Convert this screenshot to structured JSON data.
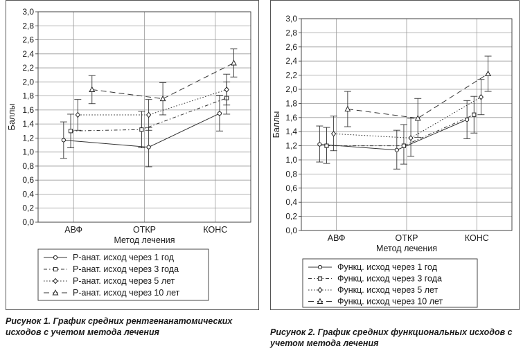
{
  "chart_data": [
    {
      "type": "line",
      "ylabel": "Баллы",
      "xlabel": "Метод лечения",
      "categories": [
        "АВФ",
        "ОТКР",
        "КОНС"
      ],
      "ylim": [
        0,
        3.0
      ],
      "yticks": [
        "0,0",
        "0,2",
        "0,4",
        "0,6",
        "0,8",
        "1,0",
        "1,2",
        "1,4",
        "1,6",
        "1,8",
        "2,0",
        "2,2",
        "2,4",
        "2,6",
        "2,8",
        "3,0"
      ],
      "grid": true,
      "legend_position": "bottom",
      "series": [
        {
          "name": "Р-анат. исход через 1 год",
          "marker": "circle",
          "dash": "solid",
          "x": [
            0.86,
            2.06,
            3.06
          ],
          "values": [
            1.17,
            1.07,
            1.55
          ],
          "err_low": [
            0.91,
            0.79,
            1.3
          ],
          "err_high": [
            1.43,
            1.35,
            1.81
          ]
        },
        {
          "name": "Р-анат. исход через 3 года",
          "marker": "square",
          "dash": "dotdash",
          "x": [
            0.96,
            1.96,
            3.16
          ],
          "values": [
            1.3,
            1.32,
            1.77
          ],
          "err_low": [
            1.06,
            1.06,
            1.54
          ],
          "err_high": [
            1.54,
            1.58,
            2.0
          ]
        },
        {
          "name": "Р-анат. исход через 5 лет",
          "marker": "diamond",
          "dash": "dotted",
          "x": [
            1.06,
            2.06,
            3.16
          ],
          "values": [
            1.53,
            1.53,
            1.89
          ],
          "err_low": [
            1.31,
            1.31,
            1.67
          ],
          "err_high": [
            1.75,
            1.75,
            2.11
          ]
        },
        {
          "name": "Р-анат. исход через 10 лет",
          "marker": "triangle",
          "dash": "dashed",
          "x": [
            1.26,
            2.26,
            3.26
          ],
          "values": [
            1.89,
            1.76,
            2.27
          ],
          "err_low": [
            1.69,
            1.53,
            2.07
          ],
          "err_high": [
            2.09,
            1.99,
            2.47
          ]
        }
      ],
      "caption": "Рисунок 1. График средних рентгенанатомических исходов с учетом метода лечения"
    },
    {
      "type": "line",
      "ylabel": "Баллы",
      "xlabel": "Метод лечения",
      "categories": [
        "АВФ",
        "ОТКР",
        "КОНС"
      ],
      "ylim": [
        0,
        3.0
      ],
      "yticks": [
        "0,0",
        "0,2",
        "0,4",
        "0,6",
        "0,8",
        "1,0",
        "1,2",
        "1,4",
        "1,6",
        "1,8",
        "2,0",
        "2,2",
        "2,4",
        "2,6",
        "2,8",
        "3,0"
      ],
      "grid": true,
      "legend_position": "bottom",
      "series": [
        {
          "name": "Функц. исход через 1 год",
          "marker": "circle",
          "dash": "solid",
          "x": [
            0.76,
            1.86,
            2.86
          ],
          "values": [
            1.22,
            1.14,
            1.57
          ],
          "err_low": [
            0.97,
            0.87,
            1.3
          ],
          "err_high": [
            1.48,
            1.42,
            1.84
          ]
        },
        {
          "name": "Функц. исход через 3 года",
          "marker": "square",
          "dash": "dotdash",
          "x": [
            0.86,
            1.96,
            2.96
          ],
          "values": [
            1.2,
            1.2,
            1.64
          ],
          "err_low": [
            0.95,
            0.94,
            1.38
          ],
          "err_high": [
            1.46,
            1.5,
            1.9
          ]
        },
        {
          "name": "Функц. исход через 5 лет",
          "marker": "diamond",
          "dash": "dotted",
          "x": [
            0.96,
            2.06,
            3.06
          ],
          "values": [
            1.37,
            1.31,
            1.89
          ],
          "err_low": [
            1.13,
            1.05,
            1.64
          ],
          "err_high": [
            1.62,
            1.59,
            2.14
          ]
        },
        {
          "name": "Функц. исход через 10 лет",
          "marker": "triangle",
          "dash": "dashed",
          "x": [
            1.16,
            2.16,
            3.16
          ],
          "values": [
            1.72,
            1.59,
            2.22
          ],
          "err_low": [
            1.47,
            1.32,
            1.97
          ],
          "err_high": [
            1.97,
            1.87,
            2.47
          ]
        }
      ],
      "caption": "Рисунок 2. График средних функциональных исходов с учетом метода лечения"
    }
  ]
}
